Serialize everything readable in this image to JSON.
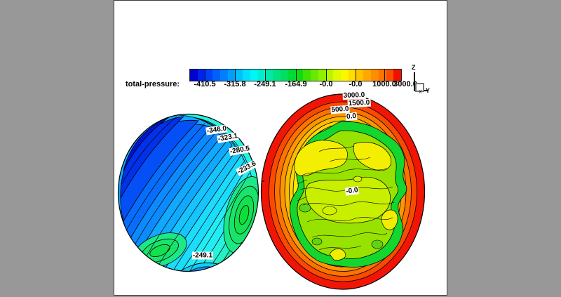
{
  "app": {
    "background_color": "#989898",
    "canvas_color": "#ffffff"
  },
  "legend": {
    "title": "total-pressure:",
    "tick_labels": [
      "-410.5",
      "-315.8",
      "-249.1",
      "-164.9",
      "-0.0",
      "-0.0",
      "1000.0",
      "3000.0"
    ],
    "colorbar_colors": [
      "#0202cc",
      "#0022ee",
      "#0041fa",
      "#0060ff",
      "#0080ff",
      "#009fff",
      "#00bfff",
      "#00dfff",
      "#00f5f5",
      "#00eecf",
      "#00e8a8",
      "#00e382",
      "#00de5c",
      "#00da36",
      "#10dc10",
      "#3ce400",
      "#66ea00",
      "#8ff000",
      "#b8f600",
      "#e0fa00",
      "#fcf600",
      "#ffdd00",
      "#ffc300",
      "#ffa800",
      "#ff8d00",
      "#ff7100",
      "#fb4e00",
      "#f01000"
    ]
  },
  "axis_indicator": {
    "up_axis": "Z",
    "right_axis": "Y",
    "depth_axis": "X"
  },
  "left_plot": {
    "labels": [
      "-346.0",
      "-323.1",
      "-280.5",
      "-233.6",
      "-249.1"
    ]
  },
  "right_plot": {
    "labels": [
      "3000.0",
      "1500.0",
      "500.0",
      "0.0",
      "-0.0"
    ]
  },
  "chart_data": {
    "type": "contour",
    "title": "total-pressure",
    "variable": "total-pressure",
    "legend_levels": [
      -410.5,
      -315.8,
      -249.1,
      -164.9,
      -0.0,
      -0.0,
      1000.0,
      3000.0
    ],
    "colormap": "rainbow, blue (low) to red (high), 28 discrete bands",
    "legend_position": "top, horizontal",
    "orientation_axes": {
      "vertical": "Z",
      "horizontal": "Y",
      "out_of_plane": "X"
    },
    "plots": [
      {
        "name": "left-cross-section",
        "shape": "ellipse",
        "labeled_contour_values": [
          -346.0,
          -323.1,
          -280.5,
          -233.6,
          -249.1
        ],
        "value_trend": "lowest pressure (dark blue ~-410) at upper-left, increasing diagonally to green (~-230) at lower-right; two local green maxima near lower-right and lower-left; cyan/blue dip at bottom edge near -249.1 label"
      },
      {
        "name": "right-cross-section",
        "shape": "ellipse",
        "labeled_contour_values": [
          3000.0,
          1500.0,
          500.0,
          0.0,
          -0.0
        ],
        "value_trend": "high pressure (red ~3000) at outer rim, concentric orange/yellow rings decreasing inward through 1500 and 500 to an irregular 0.0 green ring; mottled yellow-green core near -0.0"
      }
    ]
  }
}
